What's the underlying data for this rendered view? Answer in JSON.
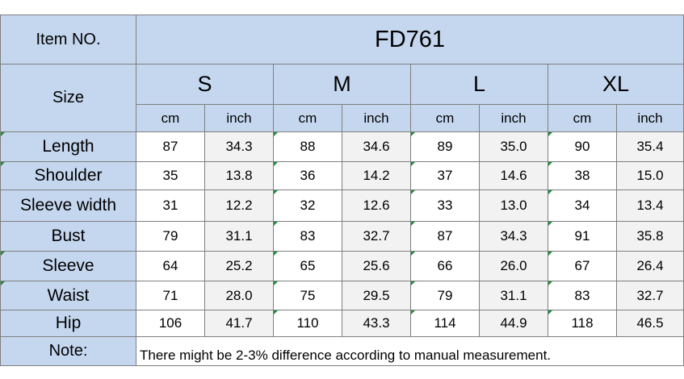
{
  "header": {
    "item_label": "Item NO.",
    "item_code": "FD761",
    "size_label": "Size",
    "sizes": [
      "S",
      "M",
      "L",
      "XL"
    ],
    "units": [
      "cm",
      "inch"
    ]
  },
  "rows": [
    {
      "label": "Length",
      "values": [
        "87",
        "34.3",
        "88",
        "34.6",
        "89",
        "35.0",
        "90",
        "35.4"
      ]
    },
    {
      "label": "Shoulder",
      "values": [
        "35",
        "13.8",
        "36",
        "14.2",
        "37",
        "14.6",
        "38",
        "15.0"
      ]
    },
    {
      "label": "Sleeve width",
      "values": [
        "31",
        "12.2",
        "32",
        "12.6",
        "33",
        "13.0",
        "34",
        "13.4"
      ]
    },
    {
      "label": "Bust",
      "values": [
        "79",
        "31.1",
        "83",
        "32.7",
        "87",
        "34.3",
        "91",
        "35.8"
      ]
    },
    {
      "label": "Sleeve",
      "values": [
        "64",
        "25.2",
        "65",
        "25.6",
        "66",
        "26.0",
        "67",
        "26.4"
      ]
    },
    {
      "label": "Waist",
      "values": [
        "71",
        "28.0",
        "75",
        "29.5",
        "79",
        "31.1",
        "83",
        "32.7"
      ]
    },
    {
      "label": "Hip",
      "values": [
        "106",
        "41.7",
        "110",
        "43.3",
        "114",
        "44.9",
        "118",
        "46.5"
      ]
    }
  ],
  "note": {
    "label": "Note:",
    "text": "There might be 2-3% difference according to manual measurement."
  },
  "colors": {
    "header_fill": "#c5d7ef",
    "alt_fill": "#f2f2f2",
    "border": "#7f7f7f",
    "marker": "#1e8c3a"
  }
}
